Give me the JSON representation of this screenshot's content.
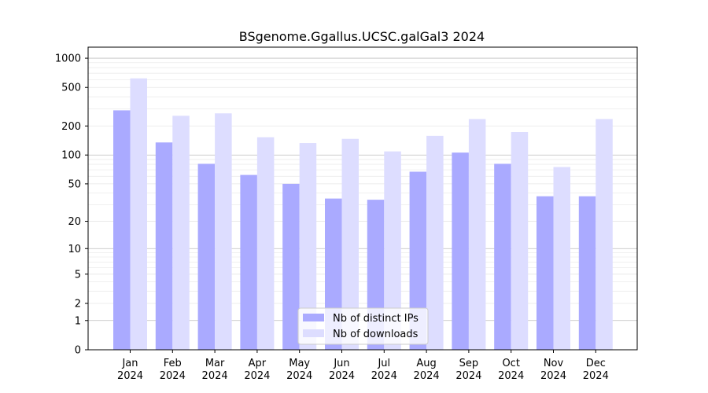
{
  "chart_data": {
    "type": "bar",
    "title": "BSgenome.Ggallus.UCSC.galGal3 2024",
    "xlabel": "",
    "ylabel": "",
    "yscale": "log1p",
    "ylim": [
      0,
      1300
    ],
    "yticks": [
      0,
      1,
      2,
      5,
      10,
      20,
      50,
      100,
      200,
      500,
      1000
    ],
    "ytick_labels": [
      "0",
      "1",
      "2",
      "5",
      "10",
      "20",
      "50",
      "100",
      "200",
      "500",
      "1000"
    ],
    "categories": [
      "Jan\n2024",
      "Feb\n2024",
      "Mar\n2024",
      "Apr\n2024",
      "May\n2024",
      "Jun\n2024",
      "Jul\n2024",
      "Aug\n2024",
      "Sep\n2024",
      "Oct\n2024",
      "Nov\n2024",
      "Dec\n2024"
    ],
    "series": [
      {
        "name": "Nb of distinct IPs",
        "color": "#aaaaff",
        "values": [
          290,
          135,
          81,
          62,
          50,
          35,
          34,
          67,
          106,
          81,
          37,
          37
        ]
      },
      {
        "name": "Nb of downloads",
        "color": "#ddddff",
        "values": [
          620,
          255,
          270,
          153,
          133,
          147,
          109,
          158,
          236,
          173,
          75,
          236
        ]
      }
    ],
    "grid": true,
    "legend_position": "bottom-center"
  }
}
